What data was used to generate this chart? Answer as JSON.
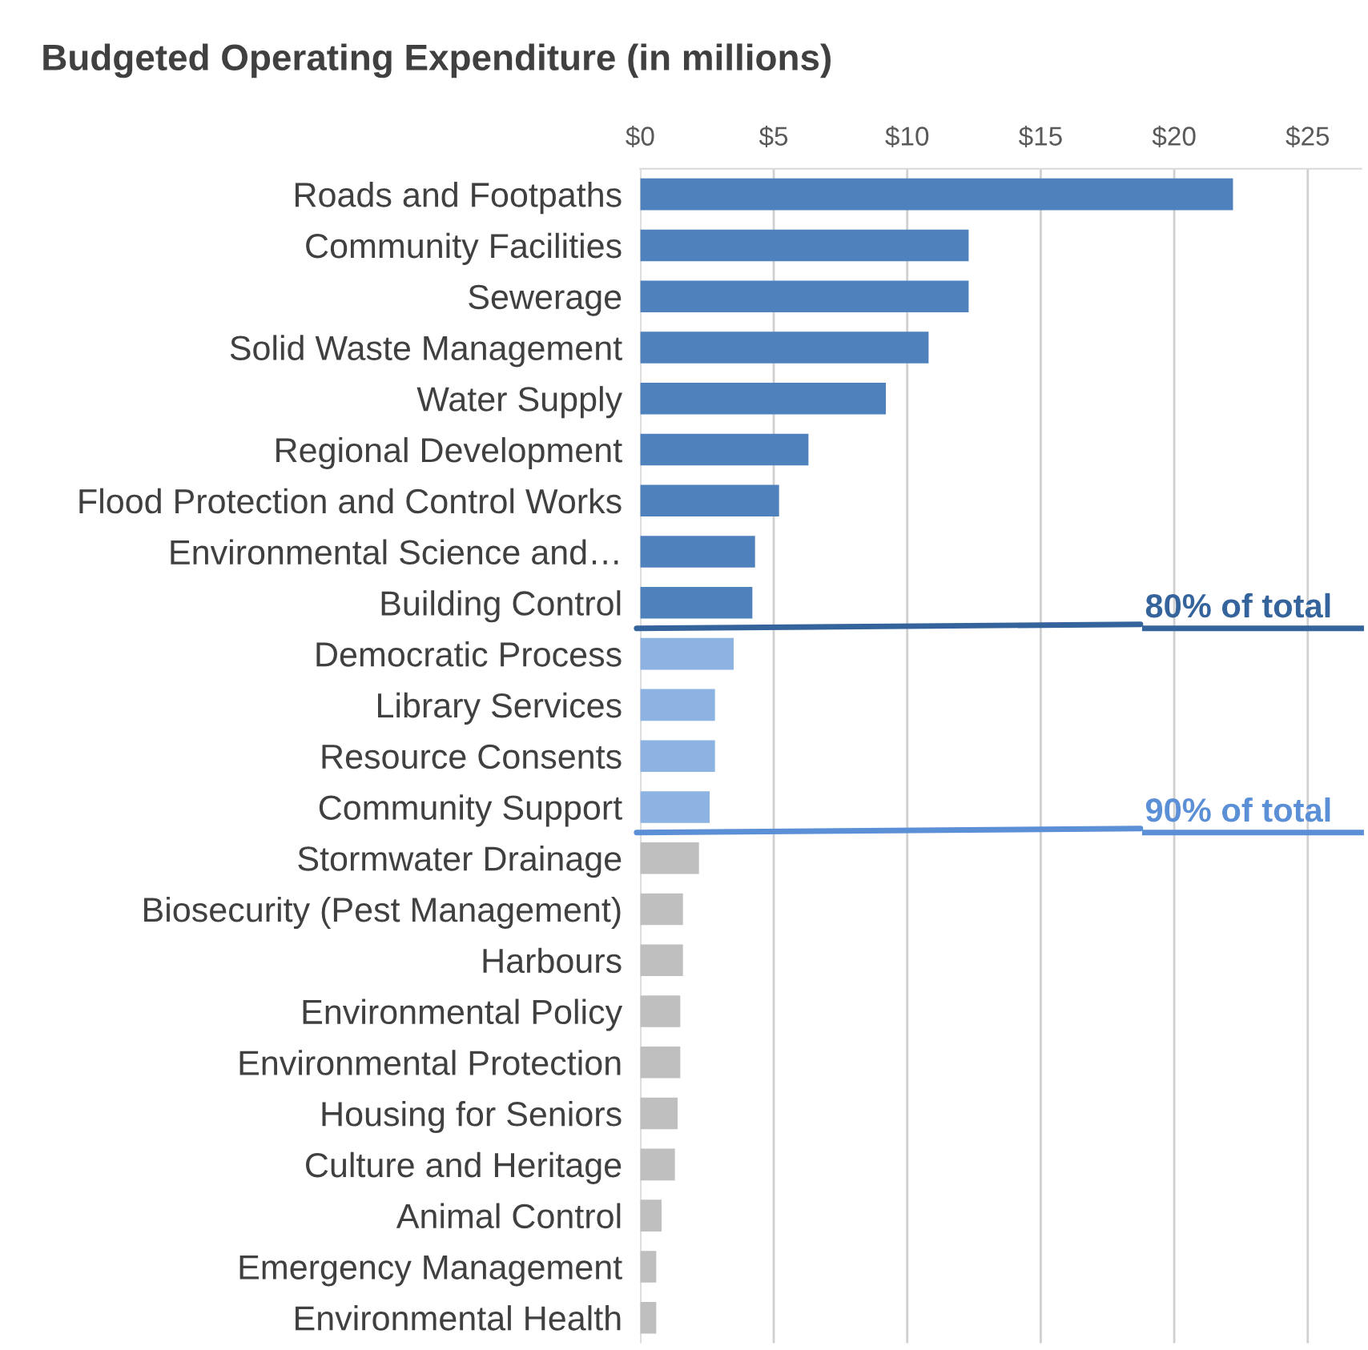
{
  "chart_data": {
    "type": "bar",
    "orientation": "horizontal",
    "title": "Budgeted Operating Expenditure (in millions)",
    "categories": [
      "Roads and Footpaths",
      "Community Facilities",
      "Sewerage",
      "Solid Waste Management",
      "Water Supply",
      "Regional Development",
      "Flood Protection and Control Works",
      "Environmental Science and…",
      "Building Control",
      "Democratic Process",
      "Library Services",
      "Resource Consents",
      "Community Support",
      "Stormwater Drainage",
      "Biosecurity (Pest Management)",
      "Harbours",
      "Environmental Policy",
      "Environmental Protection",
      "Housing for Seniors",
      "Culture and Heritage",
      "Animal Control",
      "Emergency Management",
      "Environmental Health"
    ],
    "values": [
      22.2,
      12.3,
      12.3,
      10.8,
      9.2,
      6.3,
      5.2,
      4.3,
      4.2,
      3.5,
      2.8,
      2.8,
      2.6,
      2.2,
      1.6,
      1.6,
      1.5,
      1.5,
      1.4,
      1.3,
      0.8,
      0.6,
      0.6
    ],
    "colors": [
      "#4f81bd",
      "#4f81bd",
      "#4f81bd",
      "#4f81bd",
      "#4f81bd",
      "#4f81bd",
      "#4f81bd",
      "#4f81bd",
      "#4f81bd",
      "#8db3e2",
      "#8db3e2",
      "#8db3e2",
      "#8db3e2",
      "#bfbfbf",
      "#bfbfbf",
      "#bfbfbf",
      "#bfbfbf",
      "#bfbfbf",
      "#bfbfbf",
      "#bfbfbf",
      "#bfbfbf",
      "#bfbfbf",
      "#bfbfbf"
    ],
    "xlim": [
      0,
      27
    ],
    "xticks": [
      {
        "value": 0,
        "label": "$0"
      },
      {
        "value": 5,
        "label": "$5"
      },
      {
        "value": 10,
        "label": "$10"
      },
      {
        "value": 15,
        "label": "$15"
      },
      {
        "value": 20,
        "label": "$20"
      },
      {
        "value": 25,
        "label": "$25"
      }
    ],
    "grid": "x",
    "annotations": [
      "80% of total",
      "90% of total"
    ]
  }
}
